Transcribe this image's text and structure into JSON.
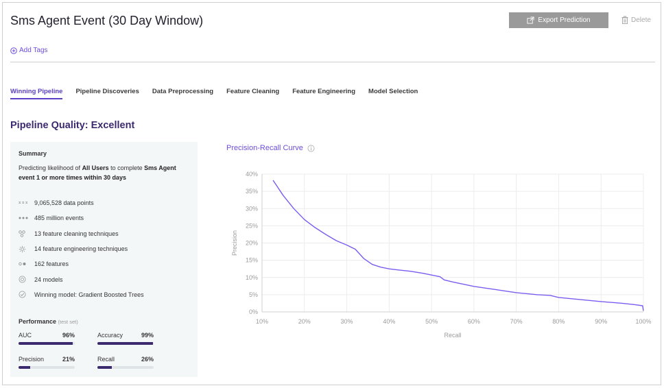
{
  "header": {
    "title": "Sms Agent Event (30 Day Window)",
    "export_label": "Export Prediction",
    "delete_label": "Delete",
    "add_tags_label": "Add Tags"
  },
  "tabs": [
    {
      "label": "Winning Pipeline",
      "active": true
    },
    {
      "label": "Pipeline Discoveries",
      "active": false
    },
    {
      "label": "Data Preprocessing",
      "active": false
    },
    {
      "label": "Feature Cleaning",
      "active": false
    },
    {
      "label": "Feature Engineering",
      "active": false
    },
    {
      "label": "Model Selection",
      "active": false
    }
  ],
  "quality_heading": "Pipeline Quality: Excellent",
  "summary": {
    "heading": "Summary",
    "desc_prefix": "Predicting likelihood of ",
    "desc_users": "All Users",
    "desc_middle": " to complete ",
    "desc_event": "Sms Agent event 1 or more times within 30 days",
    "stats": [
      {
        "icon": "data-points-icon",
        "text": "9,065,528 data points"
      },
      {
        "icon": "events-icon",
        "text": "485 million events"
      },
      {
        "icon": "cleaning-icon",
        "text": "13 feature cleaning techniques"
      },
      {
        "icon": "engineering-gear-icon",
        "text": "14 feature engineering techniques"
      },
      {
        "icon": "features-icon",
        "text": "162 features"
      },
      {
        "icon": "models-icon",
        "text": "24 models"
      },
      {
        "icon": "check-circle-icon",
        "text": "Winning model: Gradient Boosted Trees"
      }
    ]
  },
  "performance": {
    "title": "Performance",
    "subtitle": "(test set)",
    "metrics": [
      {
        "name": "AUC",
        "value": "96%",
        "fraction": 0.96
      },
      {
        "name": "Accuracy",
        "value": "99%",
        "fraction": 0.99
      },
      {
        "name": "Precision",
        "value": "21%",
        "fraction": 0.21
      },
      {
        "name": "Recall",
        "value": "26%",
        "fraction": 0.26
      }
    ]
  },
  "colors": {
    "accent": "#6d4ddc",
    "dark_purple": "#3b2a6e",
    "curve": "#7b5cf0"
  },
  "chart_data": {
    "type": "line",
    "title": "Precision-Recall Curve",
    "xlabel": "Recall",
    "ylabel": "Precision",
    "xlim": [
      0.1,
      1.0
    ],
    "ylim": [
      0,
      0.4
    ],
    "x_ticks": [
      "10%",
      "20%",
      "30%",
      "40%",
      "50%",
      "60%",
      "70%",
      "80%",
      "90%",
      "100%"
    ],
    "y_ticks": [
      "0%",
      "5%",
      "10%",
      "15%",
      "20%",
      "25%",
      "30%",
      "35%",
      "40%"
    ],
    "grid": true,
    "series": [
      {
        "x": [
          0.126,
          0.15,
          0.175,
          0.2,
          0.225,
          0.25,
          0.275,
          0.3,
          0.32,
          0.34,
          0.36,
          0.38,
          0.4,
          0.42,
          0.45,
          0.48,
          0.5,
          0.52,
          0.53,
          0.55,
          0.6,
          0.65,
          0.7,
          0.75,
          0.78,
          0.8,
          0.85,
          0.9,
          0.95,
          0.98,
          0.998,
          1.0
        ],
        "y": [
          0.382,
          0.338,
          0.3,
          0.268,
          0.245,
          0.225,
          0.207,
          0.194,
          0.182,
          0.155,
          0.138,
          0.13,
          0.125,
          0.122,
          0.118,
          0.112,
          0.107,
          0.102,
          0.093,
          0.087,
          0.074,
          0.065,
          0.056,
          0.05,
          0.048,
          0.042,
          0.036,
          0.03,
          0.025,
          0.021,
          0.018,
          0.003
        ]
      }
    ]
  }
}
